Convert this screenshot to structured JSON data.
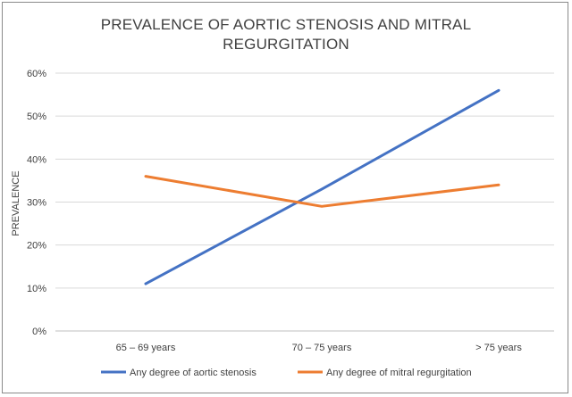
{
  "chart_data": {
    "type": "line",
    "title": "PREVALENCE OF AORTIC STENOSIS AND MITRAL REGURGITATION",
    "ylabel": "PREVALENCE",
    "xlabel": "",
    "categories": [
      "65 – 69 years",
      "70 – 75 years",
      "> 75 years"
    ],
    "ylim": [
      0,
      60
    ],
    "yticks": [
      "0%",
      "10%",
      "20%",
      "30%",
      "40%",
      "50%",
      "60%"
    ],
    "grid": true,
    "legend": "bottom",
    "series": [
      {
        "name": "Any degree of aortic stenosis",
        "values": [
          11,
          33,
          56
        ],
        "color": "#4472C4"
      },
      {
        "name": "Any degree of mitral regurgitation",
        "values": [
          36,
          29,
          34
        ],
        "color": "#ED7D31"
      }
    ]
  }
}
